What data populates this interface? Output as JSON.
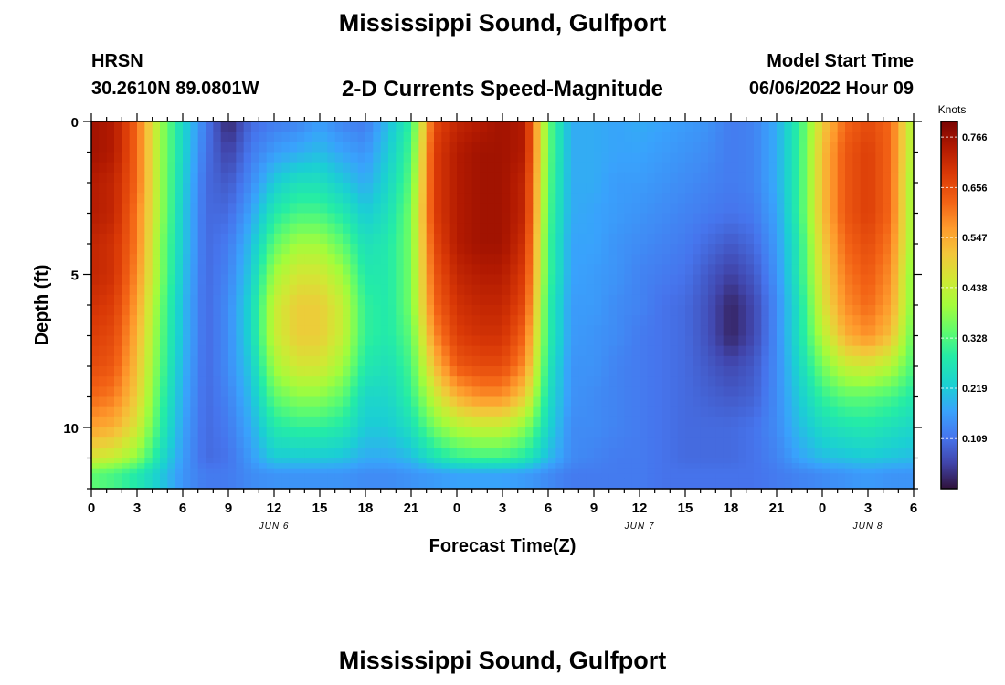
{
  "header": {
    "title": "Mississippi Sound, Gulfport",
    "station": "HRSN",
    "coordinates": "30.2610N  89.0801W",
    "subtitle": "2-D Currents Speed-Magnitude",
    "model_start_label": "Model Start Time",
    "model_start_value": "06/06/2022 Hour 09"
  },
  "footer": {
    "title": "Mississippi Sound, Gulfport"
  },
  "chart_data": {
    "type": "heatmap",
    "title": "2-D Currents Speed-Magnitude",
    "xlabel": "Forecast Time(Z)",
    "ylabel": "Depth (ft)",
    "x_range_hours": [
      0,
      54
    ],
    "x_start": "2022-06-06 00Z",
    "x_tick_labels": [
      "0",
      "3",
      "6",
      "9",
      "12",
      "15",
      "18",
      "21",
      "0",
      "3",
      "6",
      "9",
      "12",
      "15",
      "18",
      "21",
      "0",
      "3",
      "6"
    ],
    "date_labels": [
      {
        "label": "JUN 6",
        "hour": 12
      },
      {
        "label": "JUN 7",
        "hour": 36
      },
      {
        "label": "JUN 8",
        "hour": 51
      }
    ],
    "y_range_ft": [
      0,
      12
    ],
    "y_ticks": [
      0,
      5,
      10
    ],
    "y_reversed": true,
    "colorbar": {
      "unit": "Knots",
      "min": 0,
      "max": 0.8,
      "tick_labels": [
        "0.766",
        "0.656",
        "0.547",
        "0.438",
        "0.328",
        "0.219",
        "0.109"
      ]
    },
    "grid_note": "speed values (knots); rows = depths 0..11.5 ft every 1 ft, cols = hours 0..54 every 1.5 h",
    "depths_ft": [
      0,
      1,
      2,
      3,
      4,
      5,
      6,
      7,
      8,
      9,
      10,
      11,
      11.5
    ],
    "hours": [
      0,
      1.5,
      3,
      4.5,
      6,
      7.5,
      9,
      10.5,
      12,
      13.5,
      15,
      16.5,
      18,
      19.5,
      21,
      22.5,
      24,
      25.5,
      27,
      28.5,
      30,
      31.5,
      33,
      34.5,
      36,
      37.5,
      39,
      40.5,
      42,
      43.5,
      45,
      46.5,
      48,
      49.5,
      51,
      52.5,
      54
    ],
    "values": [
      [
        0.76,
        0.74,
        0.62,
        0.4,
        0.24,
        0.12,
        0.02,
        0.1,
        0.12,
        0.13,
        0.16,
        0.13,
        0.12,
        0.2,
        0.3,
        0.66,
        0.72,
        0.74,
        0.76,
        0.74,
        0.35,
        0.18,
        0.18,
        0.17,
        0.18,
        0.17,
        0.16,
        0.15,
        0.12,
        0.13,
        0.18,
        0.3,
        0.5,
        0.62,
        0.66,
        0.62,
        0.4
      ],
      [
        0.76,
        0.74,
        0.62,
        0.4,
        0.24,
        0.11,
        0.05,
        0.12,
        0.16,
        0.18,
        0.2,
        0.17,
        0.15,
        0.22,
        0.32,
        0.68,
        0.74,
        0.76,
        0.76,
        0.74,
        0.35,
        0.18,
        0.18,
        0.17,
        0.17,
        0.16,
        0.15,
        0.14,
        0.12,
        0.13,
        0.18,
        0.3,
        0.52,
        0.64,
        0.68,
        0.62,
        0.4
      ],
      [
        0.74,
        0.72,
        0.62,
        0.4,
        0.23,
        0.1,
        0.08,
        0.14,
        0.22,
        0.26,
        0.26,
        0.22,
        0.18,
        0.24,
        0.34,
        0.68,
        0.74,
        0.76,
        0.76,
        0.72,
        0.34,
        0.18,
        0.18,
        0.16,
        0.16,
        0.15,
        0.14,
        0.13,
        0.12,
        0.13,
        0.18,
        0.3,
        0.52,
        0.64,
        0.68,
        0.62,
        0.38
      ],
      [
        0.74,
        0.72,
        0.6,
        0.4,
        0.22,
        0.1,
        0.1,
        0.17,
        0.28,
        0.32,
        0.32,
        0.28,
        0.22,
        0.26,
        0.36,
        0.68,
        0.74,
        0.76,
        0.76,
        0.72,
        0.33,
        0.18,
        0.17,
        0.16,
        0.15,
        0.14,
        0.13,
        0.12,
        0.11,
        0.12,
        0.17,
        0.3,
        0.52,
        0.64,
        0.68,
        0.62,
        0.38
      ],
      [
        0.72,
        0.7,
        0.6,
        0.38,
        0.22,
        0.1,
        0.12,
        0.2,
        0.34,
        0.4,
        0.4,
        0.34,
        0.26,
        0.28,
        0.36,
        0.66,
        0.74,
        0.76,
        0.76,
        0.7,
        0.32,
        0.17,
        0.17,
        0.15,
        0.14,
        0.13,
        0.12,
        0.1,
        0.08,
        0.1,
        0.16,
        0.28,
        0.5,
        0.62,
        0.66,
        0.6,
        0.38
      ],
      [
        0.72,
        0.7,
        0.58,
        0.38,
        0.21,
        0.1,
        0.13,
        0.22,
        0.4,
        0.46,
        0.46,
        0.4,
        0.28,
        0.28,
        0.36,
        0.64,
        0.72,
        0.74,
        0.74,
        0.68,
        0.32,
        0.17,
        0.16,
        0.15,
        0.13,
        0.12,
        0.11,
        0.08,
        0.05,
        0.08,
        0.15,
        0.28,
        0.48,
        0.6,
        0.64,
        0.58,
        0.36
      ],
      [
        0.7,
        0.68,
        0.56,
        0.36,
        0.2,
        0.1,
        0.14,
        0.24,
        0.44,
        0.5,
        0.5,
        0.44,
        0.3,
        0.28,
        0.36,
        0.62,
        0.7,
        0.72,
        0.72,
        0.66,
        0.3,
        0.16,
        0.16,
        0.14,
        0.13,
        0.11,
        0.1,
        0.07,
        0.02,
        0.06,
        0.14,
        0.26,
        0.46,
        0.58,
        0.62,
        0.56,
        0.36
      ],
      [
        0.68,
        0.66,
        0.54,
        0.35,
        0.2,
        0.1,
        0.14,
        0.24,
        0.44,
        0.5,
        0.5,
        0.44,
        0.3,
        0.28,
        0.34,
        0.58,
        0.68,
        0.7,
        0.7,
        0.62,
        0.3,
        0.16,
        0.15,
        0.14,
        0.12,
        0.11,
        0.1,
        0.07,
        0.02,
        0.06,
        0.14,
        0.26,
        0.42,
        0.54,
        0.58,
        0.52,
        0.34
      ],
      [
        0.66,
        0.64,
        0.52,
        0.34,
        0.19,
        0.1,
        0.14,
        0.22,
        0.4,
        0.46,
        0.46,
        0.4,
        0.28,
        0.26,
        0.32,
        0.52,
        0.64,
        0.66,
        0.66,
        0.58,
        0.28,
        0.15,
        0.15,
        0.13,
        0.12,
        0.11,
        0.1,
        0.08,
        0.06,
        0.08,
        0.14,
        0.24,
        0.36,
        0.44,
        0.46,
        0.42,
        0.32
      ],
      [
        0.62,
        0.6,
        0.5,
        0.32,
        0.18,
        0.1,
        0.13,
        0.2,
        0.34,
        0.38,
        0.38,
        0.34,
        0.24,
        0.24,
        0.3,
        0.44,
        0.54,
        0.58,
        0.58,
        0.5,
        0.26,
        0.15,
        0.14,
        0.13,
        0.12,
        0.11,
        0.1,
        0.09,
        0.08,
        0.09,
        0.14,
        0.22,
        0.3,
        0.34,
        0.34,
        0.32,
        0.28
      ],
      [
        0.56,
        0.54,
        0.46,
        0.3,
        0.17,
        0.1,
        0.12,
        0.18,
        0.28,
        0.3,
        0.3,
        0.28,
        0.22,
        0.22,
        0.26,
        0.36,
        0.42,
        0.44,
        0.44,
        0.38,
        0.24,
        0.14,
        0.14,
        0.13,
        0.12,
        0.11,
        0.1,
        0.1,
        0.1,
        0.11,
        0.14,
        0.2,
        0.25,
        0.27,
        0.28,
        0.26,
        0.24
      ],
      [
        0.46,
        0.44,
        0.38,
        0.26,
        0.16,
        0.1,
        0.11,
        0.16,
        0.22,
        0.22,
        0.22,
        0.21,
        0.18,
        0.18,
        0.2,
        0.26,
        0.3,
        0.31,
        0.31,
        0.28,
        0.2,
        0.14,
        0.13,
        0.12,
        0.12,
        0.11,
        0.1,
        0.1,
        0.1,
        0.11,
        0.13,
        0.17,
        0.2,
        0.21,
        0.22,
        0.21,
        0.2
      ],
      [
        0.34,
        0.32,
        0.28,
        0.22,
        0.15,
        0.12,
        0.12,
        0.14,
        0.15,
        0.15,
        0.15,
        0.15,
        0.14,
        0.14,
        0.15,
        0.16,
        0.17,
        0.17,
        0.17,
        0.16,
        0.14,
        0.12,
        0.12,
        0.12,
        0.12,
        0.11,
        0.11,
        0.11,
        0.11,
        0.11,
        0.12,
        0.13,
        0.14,
        0.15,
        0.16,
        0.15,
        0.15
      ]
    ]
  }
}
